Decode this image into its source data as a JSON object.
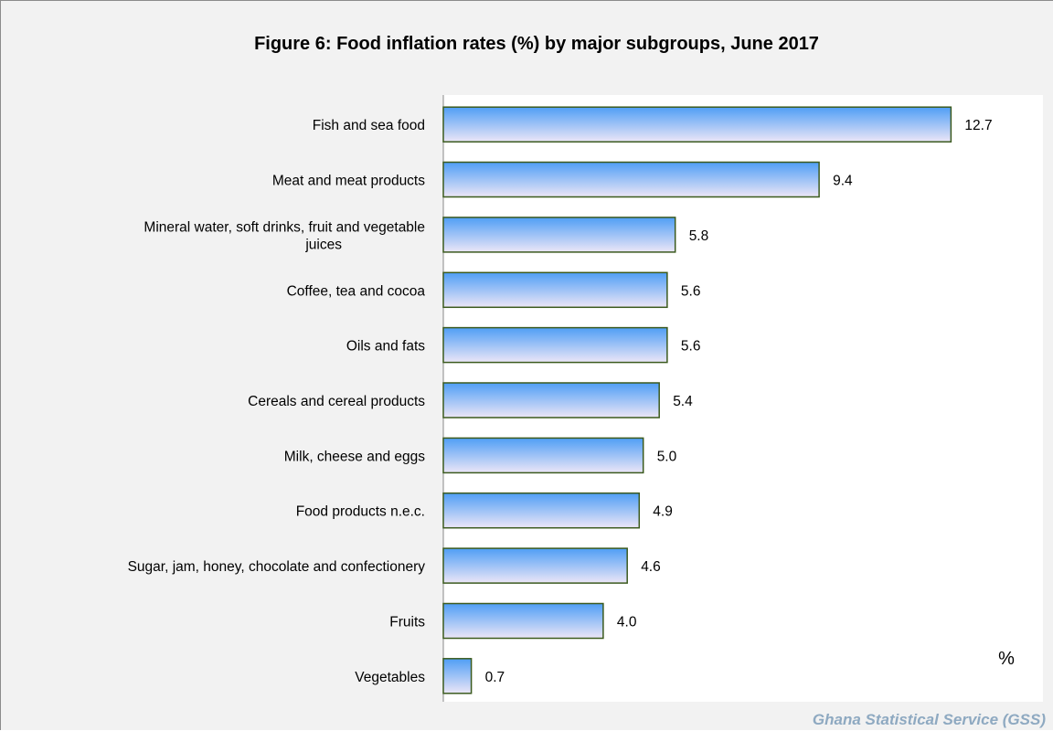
{
  "chart_data": {
    "type": "bar",
    "orientation": "horizontal",
    "title": "Figure 6: Food inflation rates (%) by  major subgroups, June 2017",
    "unit_label": "%",
    "source": "Ghana Statistical Service (GSS)",
    "categories": [
      "Fish and sea food",
      "Meat and meat products",
      "Mineral water, soft drinks, fruit and vegetable juices",
      "Coffee, tea and cocoa",
      "Oils and fats",
      "Cereals and cereal products",
      "Milk, cheese and eggs",
      "Food products n.e.c.",
      "Sugar, jam, honey, chocolate and confectionery",
      "Fruits",
      "Vegetables"
    ],
    "category_label_lines": [
      [
        "Fish and sea food"
      ],
      [
        "Meat and meat products"
      ],
      [
        "Mineral water, soft drinks, fruit and vegetable",
        "juices"
      ],
      [
        "Coffee, tea and cocoa"
      ],
      [
        "Oils and fats"
      ],
      [
        "Cereals and cereal products"
      ],
      [
        "Milk, cheese and eggs"
      ],
      [
        "Food products n.e.c."
      ],
      [
        "Sugar, jam, honey, chocolate and confectionery"
      ],
      [
        "Fruits"
      ],
      [
        "Vegetables"
      ]
    ],
    "values": [
      12.7,
      9.4,
      5.8,
      5.6,
      5.6,
      5.4,
      5.0,
      4.9,
      4.6,
      4.0,
      0.7
    ],
    "value_labels": [
      "12.7",
      "9.4",
      "5.8",
      "5.6",
      "5.6",
      "5.4",
      "5.0",
      "4.9",
      "4.6",
      "4.0",
      "0.7"
    ],
    "xlim": [
      0,
      15
    ],
    "grid": false,
    "legend": "none",
    "colors": {
      "background": "#f2f2f2",
      "plot_area": "#ffffff",
      "bar_top": "#4f9ef5",
      "bar_bottom": "#ece6f7",
      "bar_border": "#3b5a1e",
      "axis": "#888888",
      "source_text": "#8ea9c1"
    }
  }
}
